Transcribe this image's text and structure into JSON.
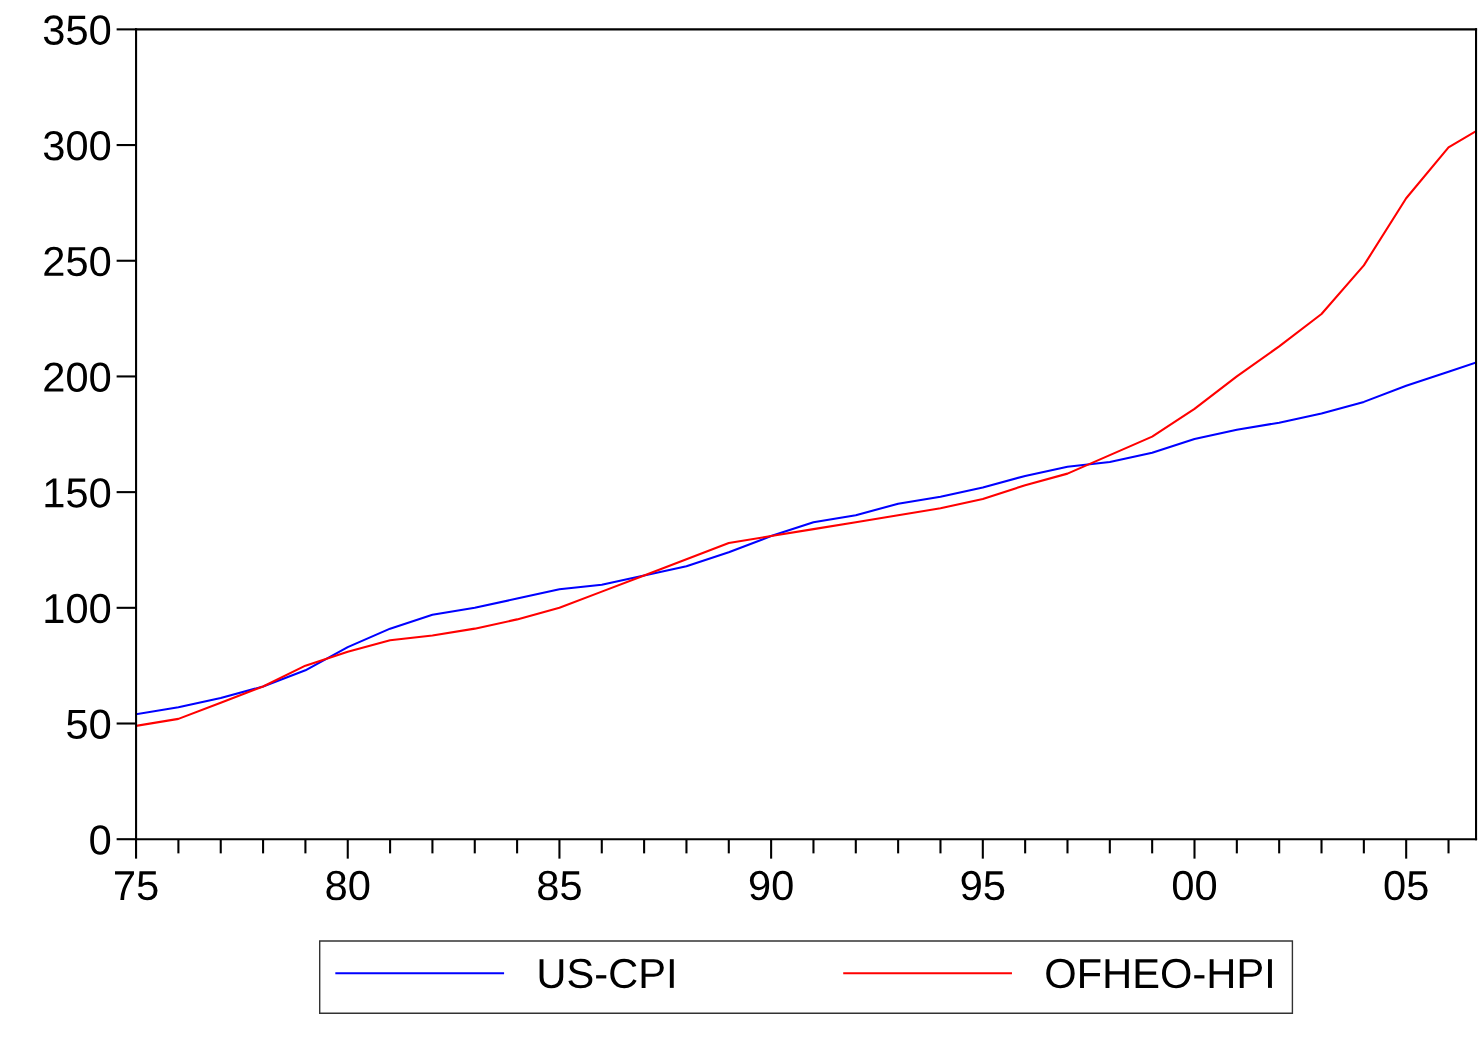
{
  "chart_data": {
    "type": "line",
    "x": [
      1975,
      1976,
      1977,
      1978,
      1979,
      1980,
      1981,
      1982,
      1983,
      1984,
      1985,
      1986,
      1987,
      1988,
      1989,
      1990,
      1991,
      1992,
      1993,
      1994,
      1995,
      1996,
      1997,
      1998,
      1999,
      2000,
      2001,
      2002,
      2003,
      2004,
      2005,
      2006,
      2006.65
    ],
    "series": [
      {
        "name": "US-CPI",
        "color": "#0000ff",
        "values": [
          54,
          57,
          61,
          66,
          73,
          83,
          91,
          97,
          100,
          104,
          108,
          110,
          114,
          118,
          124,
          131,
          137,
          140,
          145,
          148,
          152,
          157,
          161,
          163,
          167,
          173,
          177,
          180,
          184,
          189,
          196,
          202,
          206
        ]
      },
      {
        "name": "OFHEO-HPI",
        "color": "#ff0000",
        "values": [
          49,
          52,
          59,
          66,
          75,
          81,
          86,
          88,
          91,
          95,
          100,
          107,
          114,
          121,
          128,
          131,
          134,
          137,
          140,
          143,
          147,
          153,
          158,
          166,
          174,
          186,
          200,
          213,
          227,
          248,
          277,
          299,
          306
        ]
      }
    ],
    "xlim": [
      1975,
      2006.65
    ],
    "xticks": [
      {
        "value": 1975,
        "label": "75"
      },
      {
        "value": 1976,
        "label": null
      },
      {
        "value": 1977,
        "label": null
      },
      {
        "value": 1978,
        "label": null
      },
      {
        "value": 1979,
        "label": null
      },
      {
        "value": 1980,
        "label": "80"
      },
      {
        "value": 1981,
        "label": null
      },
      {
        "value": 1982,
        "label": null
      },
      {
        "value": 1983,
        "label": null
      },
      {
        "value": 1984,
        "label": null
      },
      {
        "value": 1985,
        "label": "85"
      },
      {
        "value": 1986,
        "label": null
      },
      {
        "value": 1987,
        "label": null
      },
      {
        "value": 1988,
        "label": null
      },
      {
        "value": 1989,
        "label": null
      },
      {
        "value": 1990,
        "label": "90"
      },
      {
        "value": 1991,
        "label": null
      },
      {
        "value": 1992,
        "label": null
      },
      {
        "value": 1993,
        "label": null
      },
      {
        "value": 1994,
        "label": null
      },
      {
        "value": 1995,
        "label": "95"
      },
      {
        "value": 1996,
        "label": null
      },
      {
        "value": 1997,
        "label": null
      },
      {
        "value": 1998,
        "label": null
      },
      {
        "value": 1999,
        "label": null
      },
      {
        "value": 2000,
        "label": "00"
      },
      {
        "value": 2001,
        "label": null
      },
      {
        "value": 2002,
        "label": null
      },
      {
        "value": 2003,
        "label": null
      },
      {
        "value": 2004,
        "label": null
      },
      {
        "value": 2005,
        "label": "05"
      },
      {
        "value": 2006,
        "label": null
      }
    ],
    "ylim": [
      0,
      350
    ],
    "yticks": [
      0,
      50,
      100,
      150,
      200,
      250,
      300,
      350
    ],
    "grid": false,
    "legend": "bottom",
    "line_style": "solid",
    "marker": "none"
  }
}
